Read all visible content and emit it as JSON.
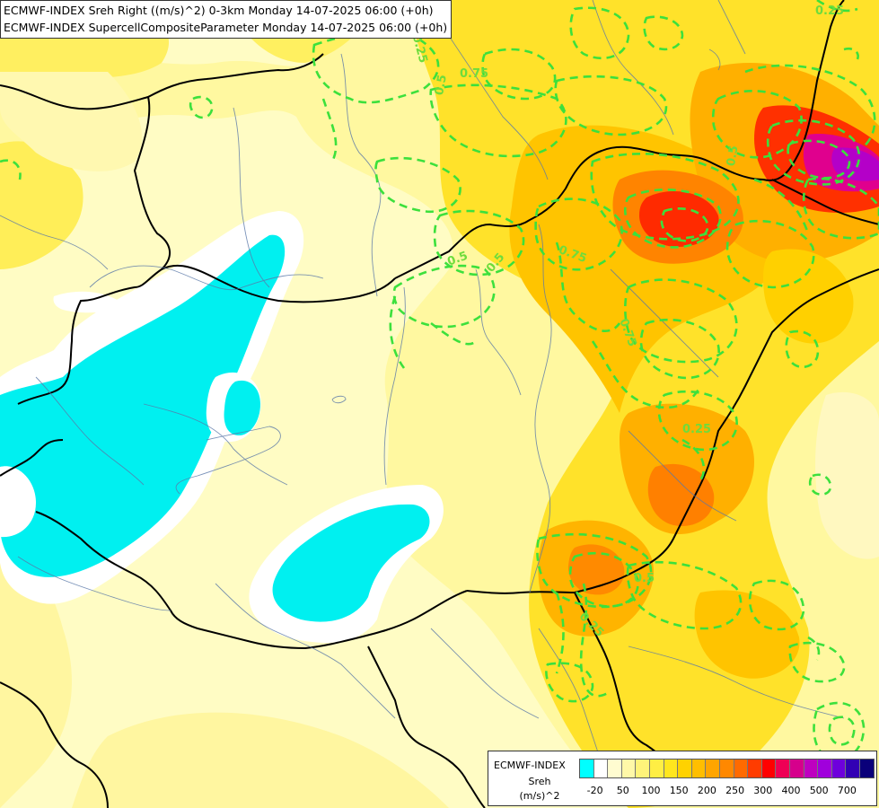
{
  "title": {
    "line1": "ECMWF-INDEX Sreh Right ((m/s)^2) 0-3km Monday 14-07-2025 06:00 (+0h)",
    "line2": "ECMWF-INDEX SupercellCompositeParameter Monday 14-07-2025 06:00 (+0h)"
  },
  "legend": {
    "model": "ECMWF-INDEX",
    "variable": "Sreh",
    "unit": "(m/s)^2",
    "colors": [
      "#00ffff",
      "#ffffff",
      "#fffcd0",
      "#fff8a8",
      "#fff37a",
      "#ffee44",
      "#ffe61e",
      "#ffd200",
      "#ffbe00",
      "#ffa500",
      "#ff8800",
      "#ff6a00",
      "#ff3c00",
      "#ff0000",
      "#ee0055",
      "#d6008c",
      "#be00c0",
      "#a000dc",
      "#6e00dc",
      "#3200b4",
      "#0a007a"
    ],
    "ticks": [
      "-20",
      "50",
      "100",
      "150",
      "200",
      "250",
      "300",
      "400",
      "500",
      "700"
    ]
  },
  "contour_labels": [
    "0.25",
    "0.75",
    "0.5",
    "0.5",
    "0.75",
    "0.5",
    "0.75",
    "0.5",
    "0.25",
    "0.5",
    "0.25",
    "0.25"
  ]
}
